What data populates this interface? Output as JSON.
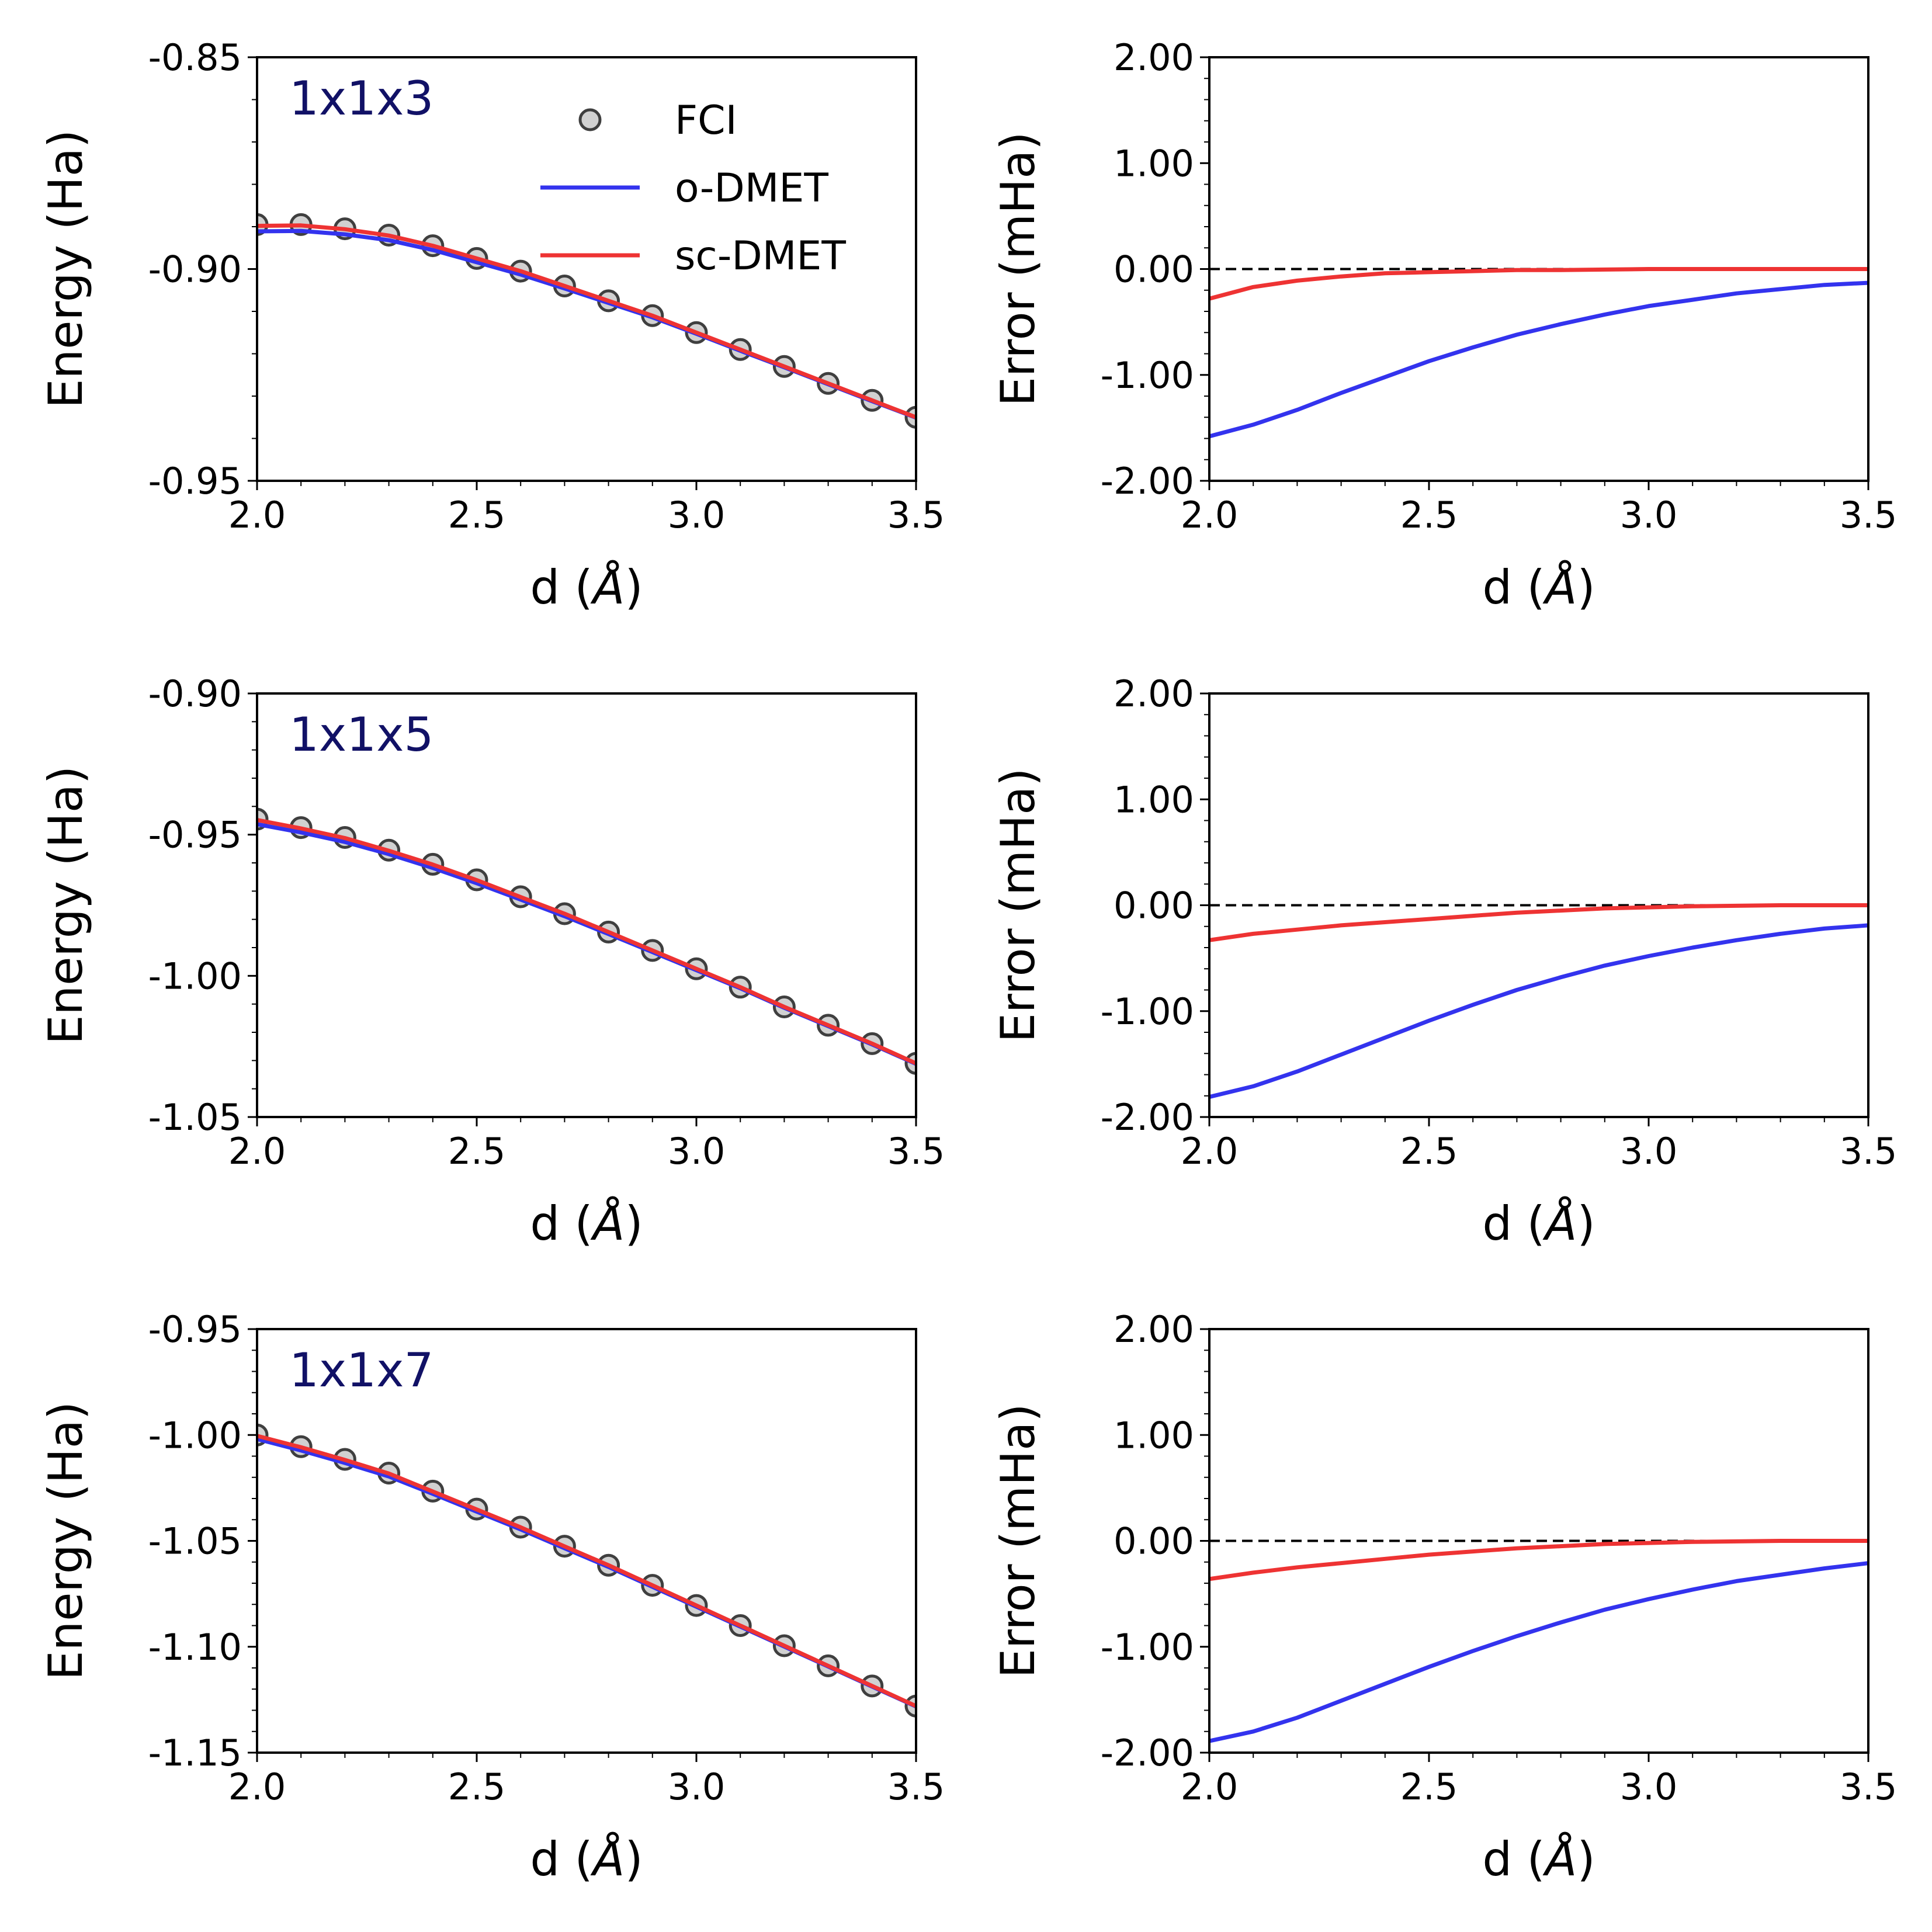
{
  "figure": {
    "legend": {
      "location": "top-right of first panel",
      "entries": [
        {
          "label": "FCI",
          "kind": "marker"
        },
        {
          "label": "o-DMET",
          "kind": "line",
          "color": "#3333ee"
        },
        {
          "label": "sc-DMET",
          "kind": "line",
          "color": "#ee3333"
        }
      ]
    },
    "colors": {
      "odmet": "#3333ee",
      "scdmet": "#ee3333",
      "fci_edge": "#3f3f3f",
      "fci_face": "#9a9a9a",
      "panel_label": "#111166"
    }
  },
  "chart_data": [
    {
      "type": "line",
      "panel": "1x1x3",
      "label": "1x1x3",
      "xlabel_prefix": "d (",
      "xlabel_unit": "Å",
      "xlabel_suffix": ")",
      "ylabel": "Energy (Ha)",
      "xlim": [
        2.0,
        3.5
      ],
      "ylim": [
        -0.95,
        -0.85
      ],
      "xticks": [
        "2.0",
        "2.5",
        "3.0",
        "3.5"
      ],
      "yticks": [
        "-0.85",
        "-0.90",
        "-0.95"
      ],
      "ytick_values": [
        -0.85,
        -0.9,
        -0.95
      ],
      "x": [
        2.0,
        2.1,
        2.2,
        2.3,
        2.4,
        2.5,
        2.6,
        2.7,
        2.8,
        2.9,
        3.0,
        3.1,
        3.2,
        3.3,
        3.4,
        3.5
      ],
      "series": [
        {
          "name": "FCI",
          "style": "markers",
          "values": [
            -0.8895,
            -0.8895,
            -0.8905,
            -0.892,
            -0.8945,
            -0.8975,
            -0.9005,
            -0.904,
            -0.9075,
            -0.911,
            -0.915,
            -0.919,
            -0.923,
            -0.927,
            -0.931,
            -0.935
          ]
        },
        {
          "name": "o-DMET",
          "style": "line",
          "values": [
            -0.8911,
            -0.891,
            -0.8918,
            -0.8932,
            -0.8955,
            -0.8984,
            -0.9013,
            -0.9046,
            -0.908,
            -0.9114,
            -0.9153,
            -0.9193,
            -0.9232,
            -0.9272,
            -0.9312,
            -0.9351
          ]
        },
        {
          "name": "sc-DMET",
          "style": "line",
          "values": [
            -0.8898,
            -0.8897,
            -0.8906,
            -0.8921,
            -0.8945,
            -0.8975,
            -0.9005,
            -0.904,
            -0.9075,
            -0.911,
            -0.915,
            -0.919,
            -0.923,
            -0.927,
            -0.931,
            -0.935
          ]
        }
      ]
    },
    {
      "type": "line",
      "panel": "1x1x3-error",
      "xlabel_prefix": "d (",
      "xlabel_unit": "Å",
      "xlabel_suffix": ")",
      "ylabel": "Error (mHa)",
      "xlim": [
        2.0,
        3.5
      ],
      "ylim": [
        -2.0,
        2.0
      ],
      "xticks": [
        "2.0",
        "2.5",
        "3.0",
        "3.5"
      ],
      "yticks": [
        "2.00",
        "1.00",
        "0.00",
        "-1.00",
        "-2.00"
      ],
      "ytick_values": [
        2.0,
        1.0,
        0.0,
        -1.0,
        -2.0
      ],
      "reference_line": 0.0,
      "x": [
        2.0,
        2.1,
        2.2,
        2.3,
        2.4,
        2.5,
        2.6,
        2.7,
        2.8,
        2.9,
        3.0,
        3.1,
        3.2,
        3.3,
        3.4,
        3.5
      ],
      "series": [
        {
          "name": "o-DMET",
          "style": "line",
          "values": [
            -1.58,
            -1.47,
            -1.33,
            -1.17,
            -1.02,
            -0.87,
            -0.74,
            -0.62,
            -0.52,
            -0.43,
            -0.35,
            -0.29,
            -0.23,
            -0.19,
            -0.15,
            -0.13
          ]
        },
        {
          "name": "sc-DMET",
          "style": "line",
          "values": [
            -0.28,
            -0.17,
            -0.11,
            -0.07,
            -0.04,
            -0.03,
            -0.02,
            -0.01,
            -0.01,
            -0.005,
            0.0,
            0.0,
            0.0,
            0.0,
            0.0,
            0.0
          ]
        }
      ]
    },
    {
      "type": "line",
      "panel": "1x1x5",
      "label": "1x1x5",
      "xlabel_prefix": "d (",
      "xlabel_unit": "Å",
      "xlabel_suffix": ")",
      "ylabel": "Energy (Ha)",
      "xlim": [
        2.0,
        3.5
      ],
      "ylim": [
        -1.05,
        -0.9
      ],
      "xticks": [
        "2.0",
        "2.5",
        "3.0",
        "3.5"
      ],
      "yticks": [
        "-0.90",
        "-0.95",
        "-1.00",
        "-1.05"
      ],
      "ytick_values": [
        -0.9,
        -0.95,
        -1.0,
        -1.05
      ],
      "x": [
        2.0,
        2.1,
        2.2,
        2.3,
        2.4,
        2.5,
        2.6,
        2.7,
        2.8,
        2.9,
        3.0,
        3.1,
        3.2,
        3.3,
        3.4,
        3.5
      ],
      "series": [
        {
          "name": "FCI",
          "style": "markers",
          "values": [
            -0.9445,
            -0.9475,
            -0.951,
            -0.9555,
            -0.9605,
            -0.966,
            -0.972,
            -0.978,
            -0.9845,
            -0.991,
            -0.9975,
            -1.004,
            -1.011,
            -1.0175,
            -1.024,
            -1.031
          ]
        },
        {
          "name": "o-DMET",
          "style": "line",
          "values": [
            -0.9463,
            -0.9492,
            -0.9526,
            -0.9569,
            -0.9618,
            -0.9672,
            -0.973,
            -0.9789,
            -0.9852,
            -0.9916,
            -0.998,
            -1.0044,
            -1.0113,
            -1.0178,
            -1.0243,
            -1.0312
          ]
        },
        {
          "name": "sc-DMET",
          "style": "line",
          "values": [
            -0.9448,
            -0.9478,
            -0.9512,
            -0.9557,
            -0.9606,
            -0.9661,
            -0.9721,
            -0.978,
            -0.9845,
            -0.991,
            -0.9975,
            -1.004,
            -1.011,
            -1.0175,
            -1.024,
            -1.031
          ]
        }
      ]
    },
    {
      "type": "line",
      "panel": "1x1x5-error",
      "xlabel_prefix": "d (",
      "xlabel_unit": "Å",
      "xlabel_suffix": ")",
      "ylabel": "Error (mHa)",
      "xlim": [
        2.0,
        3.5
      ],
      "ylim": [
        -2.0,
        2.0
      ],
      "xticks": [
        "2.0",
        "2.5",
        "3.0",
        "3.5"
      ],
      "yticks": [
        "2.00",
        "1.00",
        "0.00",
        "-1.00",
        "-2.00"
      ],
      "ytick_values": [
        2.0,
        1.0,
        0.0,
        -1.0,
        -2.0
      ],
      "reference_line": 0.0,
      "x": [
        2.0,
        2.1,
        2.2,
        2.3,
        2.4,
        2.5,
        2.6,
        2.7,
        2.8,
        2.9,
        3.0,
        3.1,
        3.2,
        3.3,
        3.4,
        3.5
      ],
      "series": [
        {
          "name": "o-DMET",
          "style": "line",
          "values": [
            -1.81,
            -1.71,
            -1.57,
            -1.41,
            -1.25,
            -1.09,
            -0.94,
            -0.8,
            -0.68,
            -0.57,
            -0.48,
            -0.4,
            -0.33,
            -0.27,
            -0.22,
            -0.19
          ]
        },
        {
          "name": "sc-DMET",
          "style": "line",
          "values": [
            -0.33,
            -0.27,
            -0.23,
            -0.19,
            -0.16,
            -0.13,
            -0.1,
            -0.07,
            -0.05,
            -0.03,
            -0.02,
            -0.01,
            -0.005,
            0.0,
            0.0,
            0.0
          ]
        }
      ]
    },
    {
      "type": "line",
      "panel": "1x1x7",
      "label": "1x1x7",
      "xlabel_prefix": "d (",
      "xlabel_unit": "Å",
      "xlabel_suffix": ")",
      "ylabel": "Energy (Ha)",
      "xlim": [
        2.0,
        3.5
      ],
      "ylim": [
        -1.15,
        -0.95
      ],
      "xticks": [
        "2.0",
        "2.5",
        "3.0",
        "3.5"
      ],
      "yticks": [
        "-0.95",
        "-1.00",
        "-1.05",
        "-1.10",
        "-1.15"
      ],
      "ytick_values": [
        -0.95,
        -1.0,
        -1.05,
        -1.1,
        -1.15
      ],
      "x": [
        2.0,
        2.1,
        2.2,
        2.3,
        2.4,
        2.5,
        2.6,
        2.7,
        2.8,
        2.9,
        3.0,
        3.1,
        3.2,
        3.3,
        3.4,
        3.5
      ],
      "series": [
        {
          "name": "FCI",
          "style": "markers",
          "values": [
            -1.0,
            -1.0055,
            -1.0115,
            -1.018,
            -1.0265,
            -1.035,
            -1.0435,
            -1.0525,
            -1.0615,
            -1.071,
            -1.0805,
            -1.09,
            -1.0995,
            -1.109,
            -1.1185,
            -1.128
          ]
        },
        {
          "name": "o-DMET",
          "style": "line",
          "values": [
            -1.0019,
            -1.0073,
            -1.0132,
            -1.0196,
            -1.0278,
            -1.0362,
            -1.0446,
            -1.0535,
            -1.0623,
            -1.0717,
            -1.0811,
            -1.0905,
            -1.0999,
            -1.1093,
            -1.1188,
            -1.1282
          ]
        },
        {
          "name": "sc-DMET",
          "style": "line",
          "values": [
            -1.0004,
            -1.0058,
            -1.0118,
            -1.0182,
            -1.0267,
            -1.0352,
            -1.0436,
            -1.0526,
            -1.0615,
            -1.071,
            -1.0805,
            -1.09,
            -1.0995,
            -1.109,
            -1.1185,
            -1.128
          ]
        }
      ]
    },
    {
      "type": "line",
      "panel": "1x1x7-error",
      "xlabel_prefix": "d (",
      "xlabel_unit": "Å",
      "xlabel_suffix": ")",
      "ylabel": "Error (mHa)",
      "xlim": [
        2.0,
        3.5
      ],
      "ylim": [
        -2.0,
        2.0
      ],
      "xticks": [
        "2.0",
        "2.5",
        "3.0",
        "3.5"
      ],
      "yticks": [
        "2.00",
        "1.00",
        "0.00",
        "-1.00",
        "-2.00"
      ],
      "ytick_values": [
        2.0,
        1.0,
        0.0,
        -1.0,
        -2.0
      ],
      "reference_line": 0.0,
      "x": [
        2.0,
        2.1,
        2.2,
        2.3,
        2.4,
        2.5,
        2.6,
        2.7,
        2.8,
        2.9,
        3.0,
        3.1,
        3.2,
        3.3,
        3.4,
        3.5
      ],
      "series": [
        {
          "name": "o-DMET",
          "style": "line",
          "values": [
            -1.89,
            -1.8,
            -1.67,
            -1.51,
            -1.35,
            -1.19,
            -1.04,
            -0.9,
            -0.77,
            -0.65,
            -0.55,
            -0.46,
            -0.38,
            -0.32,
            -0.26,
            -0.21
          ]
        },
        {
          "name": "sc-DMET",
          "style": "line",
          "values": [
            -0.36,
            -0.3,
            -0.25,
            -0.21,
            -0.17,
            -0.13,
            -0.1,
            -0.07,
            -0.05,
            -0.03,
            -0.02,
            -0.01,
            -0.005,
            0.0,
            0.0,
            0.0
          ]
        }
      ]
    }
  ]
}
